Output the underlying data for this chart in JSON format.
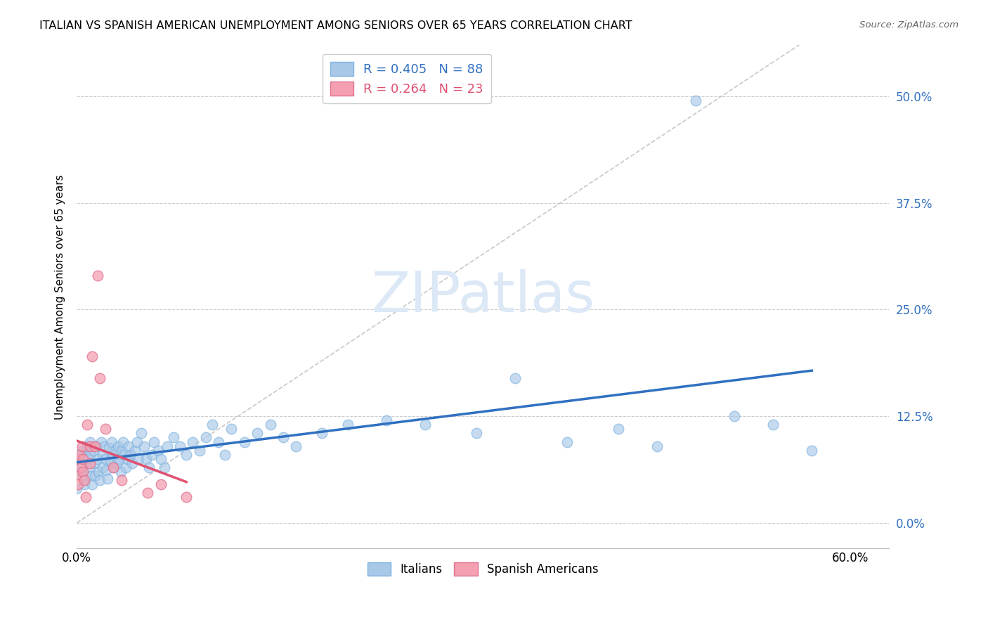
{
  "title": "ITALIAN VS SPANISH AMERICAN UNEMPLOYMENT AMONG SENIORS OVER 65 YEARS CORRELATION CHART",
  "source": "Source: ZipAtlas.com",
  "ylabel": "Unemployment Among Seniors over 65 years",
  "xlim": [
    0.0,
    0.63
  ],
  "ylim": [
    -0.03,
    0.56
  ],
  "xticks": [
    0.0,
    0.1,
    0.2,
    0.3,
    0.4,
    0.5,
    0.6
  ],
  "ytick_positions": [
    0.0,
    0.125,
    0.25,
    0.375,
    0.5
  ],
  "ytick_labels": [
    "0.0%",
    "12.5%",
    "25.0%",
    "37.5%",
    "50.0%"
  ],
  "italian_color": "#a8c8e8",
  "spanish_color": "#f4a0b0",
  "italian_edge_color": "#7eb3e0",
  "spanish_edge_color": "#e07090",
  "italian_line_color": "#3070c0",
  "spanish_line_color": "#e05070",
  "diagonal_color": "#c8c8c8",
  "watermark_color": "#dce8f5",
  "legend_italian_R": "R = 0.405",
  "legend_italian_N": "N = 88",
  "legend_spanish_R": "R = 0.264",
  "legend_spanish_N": "N = 23",
  "italians_x": [
    0.0,
    0.0,
    0.0,
    0.004,
    0.004,
    0.005,
    0.005,
    0.006,
    0.008,
    0.009,
    0.01,
    0.01,
    0.01,
    0.011,
    0.012,
    0.013,
    0.014,
    0.014,
    0.015,
    0.016,
    0.017,
    0.018,
    0.019,
    0.02,
    0.02,
    0.021,
    0.022,
    0.023,
    0.024,
    0.025,
    0.026,
    0.027,
    0.028,
    0.029,
    0.03,
    0.031,
    0.032,
    0.033,
    0.034,
    0.035,
    0.036,
    0.037,
    0.038,
    0.039,
    0.04,
    0.042,
    0.043,
    0.045,
    0.047,
    0.048,
    0.05,
    0.052,
    0.054,
    0.056,
    0.058,
    0.06,
    0.063,
    0.065,
    0.068,
    0.07,
    0.075,
    0.08,
    0.085,
    0.09,
    0.095,
    0.1,
    0.105,
    0.11,
    0.115,
    0.12,
    0.13,
    0.14,
    0.15,
    0.16,
    0.17,
    0.19,
    0.21,
    0.24,
    0.27,
    0.31,
    0.34,
    0.38,
    0.42,
    0.45,
    0.48,
    0.51,
    0.54,
    0.57
  ],
  "italians_y": [
    0.075,
    0.06,
    0.04,
    0.085,
    0.065,
    0.08,
    0.055,
    0.045,
    0.09,
    0.075,
    0.095,
    0.08,
    0.065,
    0.055,
    0.045,
    0.085,
    0.07,
    0.055,
    0.09,
    0.075,
    0.06,
    0.05,
    0.095,
    0.08,
    0.065,
    0.09,
    0.075,
    0.062,
    0.052,
    0.088,
    0.073,
    0.095,
    0.08,
    0.065,
    0.085,
    0.07,
    0.09,
    0.075,
    0.06,
    0.085,
    0.095,
    0.08,
    0.065,
    0.075,
    0.09,
    0.08,
    0.07,
    0.085,
    0.095,
    0.075,
    0.105,
    0.09,
    0.075,
    0.065,
    0.08,
    0.095,
    0.085,
    0.075,
    0.065,
    0.09,
    0.1,
    0.09,
    0.08,
    0.095,
    0.085,
    0.1,
    0.115,
    0.095,
    0.08,
    0.11,
    0.095,
    0.105,
    0.115,
    0.1,
    0.09,
    0.105,
    0.115,
    0.12,
    0.115,
    0.105,
    0.17,
    0.095,
    0.11,
    0.09,
    0.495,
    0.125,
    0.115,
    0.085
  ],
  "spanish_x": [
    0.0,
    0.0,
    0.001,
    0.002,
    0.003,
    0.004,
    0.005,
    0.005,
    0.006,
    0.007,
    0.008,
    0.01,
    0.01,
    0.012,
    0.014,
    0.016,
    0.018,
    0.022,
    0.028,
    0.035,
    0.055,
    0.065,
    0.085
  ],
  "spanish_y": [
    0.075,
    0.055,
    0.045,
    0.08,
    0.065,
    0.09,
    0.075,
    0.06,
    0.05,
    0.03,
    0.115,
    0.09,
    0.07,
    0.195,
    0.09,
    0.29,
    0.17,
    0.11,
    0.065,
    0.05,
    0.035,
    0.045,
    0.03
  ]
}
